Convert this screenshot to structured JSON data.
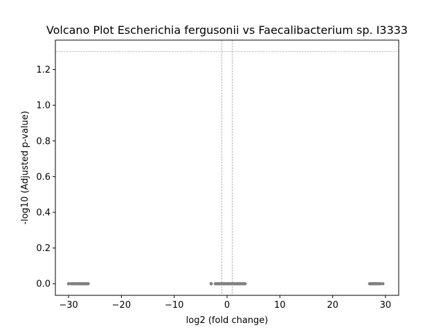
{
  "chart_data": {
    "type": "scatter",
    "title": "Volcano Plot Escherichia fergusonii vs Faecalibacterium sp. I3333",
    "xlabel": "log2 (fold change)",
    "ylabel": "-log10 (Adjusted p-value)",
    "xlim": [
      -32.5,
      32.5
    ],
    "ylim": [
      -0.065,
      1.365
    ],
    "x_ticks": [
      -30,
      -20,
      -10,
      0,
      10,
      20,
      30
    ],
    "x_tick_labels": [
      "−30",
      "−20",
      "−10",
      "0",
      "10",
      "20",
      "30"
    ],
    "y_ticks": [
      0.0,
      0.2,
      0.4,
      0.6,
      0.8,
      1.0,
      1.2
    ],
    "y_tick_labels": [
      "0.0",
      "0.2",
      "0.4",
      "0.6",
      "0.8",
      "1.0",
      "1.2"
    ],
    "thresholds": {
      "x": [
        -1,
        1
      ],
      "y": 1.30103
    },
    "grid": false,
    "point_color": "#808080",
    "threshold_color": "#808080",
    "series": [
      {
        "color": "#808080",
        "x": [
          -30.0,
          -29.5,
          -29.2,
          -28.9,
          -28.6,
          -28.3,
          -28.0,
          -27.8,
          -27.5,
          -27.3,
          -27.0,
          -26.8,
          -26.5,
          -26.3,
          -3.0,
          -2.2,
          -1.9,
          -1.6,
          -1.3,
          -1.0,
          -0.7,
          -0.4,
          -0.1,
          0.2,
          0.5,
          0.8,
          1.1,
          1.4,
          1.7,
          2.0,
          2.3,
          2.6,
          2.9,
          3.2,
          3.4,
          27.0,
          27.3,
          27.6,
          27.9,
          28.2,
          28.5,
          28.8,
          29.0,
          29.5
        ],
        "y": [
          0,
          0,
          0,
          0,
          0,
          0,
          0,
          0,
          0,
          0,
          0,
          0,
          0,
          0,
          0,
          0,
          0,
          0,
          0,
          0,
          0,
          0,
          0,
          0,
          0,
          0,
          0,
          0,
          0,
          0,
          0,
          0,
          0,
          0,
          0,
          0,
          0,
          0,
          0,
          0,
          0,
          0,
          0,
          0
        ]
      }
    ]
  }
}
